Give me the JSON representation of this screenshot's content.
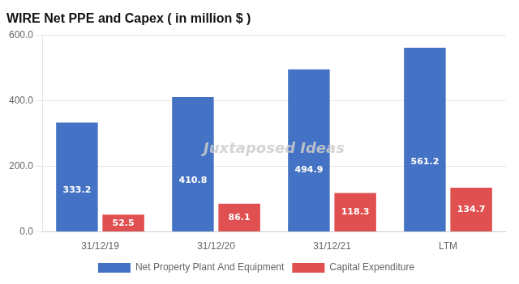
{
  "chart_data": {
    "type": "bar",
    "title": "WIRE Net PPE and Capex ( in million $ )",
    "categories": [
      "31/12/19",
      "31/12/20",
      "31/12/21",
      "LTM"
    ],
    "series": [
      {
        "name": "Net Property Plant And Equipment",
        "color": "#4472C4",
        "values": [
          333.2,
          410.8,
          494.9,
          561.2
        ]
      },
      {
        "name": "Capital Expenditure",
        "color": "#E05050",
        "values": [
          52.5,
          86.1,
          118.3,
          134.7
        ]
      }
    ],
    "ylim": [
      0,
      600
    ],
    "yticks": [
      {
        "value": 0,
        "label": "0.0"
      },
      {
        "value": 200,
        "label": "200.0"
      },
      {
        "value": 400,
        "label": "400.0"
      },
      {
        "value": 600,
        "label": "600.0"
      }
    ],
    "grid": true,
    "legend": "bottom",
    "data_labels": true,
    "annotations": [
      "Juxtaposed Ideas"
    ]
  }
}
